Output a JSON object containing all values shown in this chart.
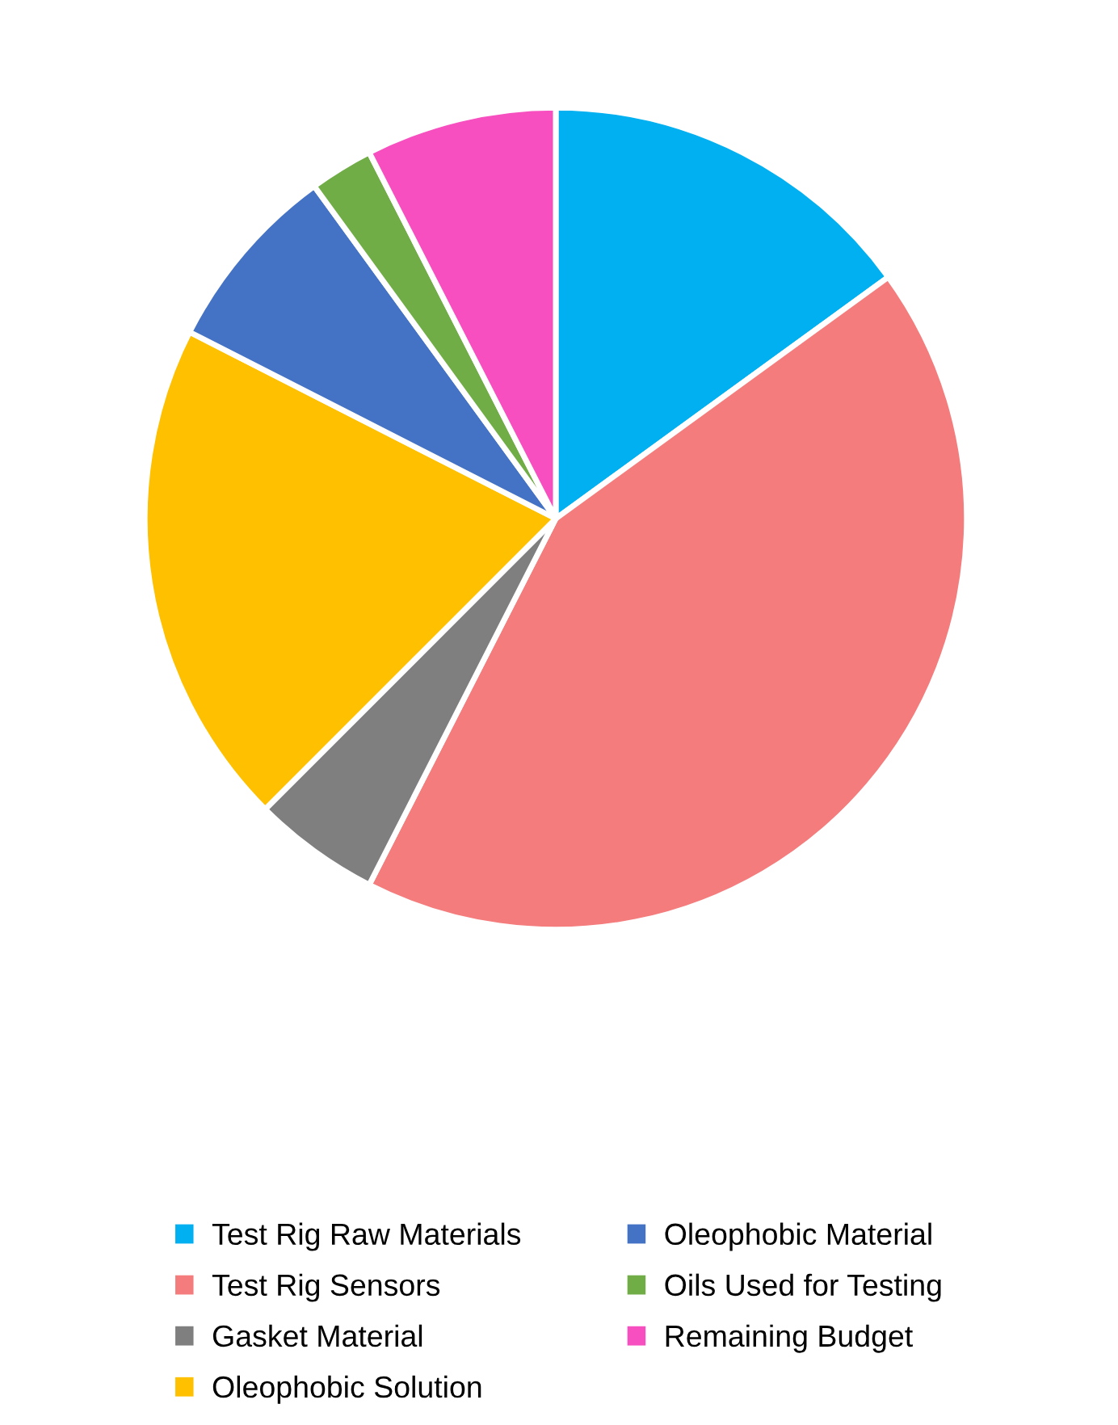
{
  "chart_data": {
    "type": "pie",
    "categories": [
      "Test Rig Raw Materials",
      "Test Rig Sensors",
      "Gasket Material",
      "Oleophobic Solution",
      "Oleophobic Material",
      "Oils Used for Testing",
      "Remaining Budget"
    ],
    "values": [
      15,
      42.5,
      5,
      20,
      7.5,
      2.5,
      7.5
    ],
    "colors": [
      "#00b0f0",
      "#f47c7c",
      "#7f7f7f",
      "#ffc000",
      "#4472c4",
      "#70ad47",
      "#f74fbf"
    ],
    "legend": "bottom"
  }
}
